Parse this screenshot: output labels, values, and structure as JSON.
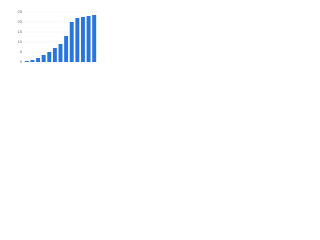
{
  "chart_data": {
    "type": "bar",
    "categories": [
      null,
      null,
      null,
      null,
      null,
      null,
      null,
      null,
      null,
      null,
      null,
      null,
      null
    ],
    "values": [
      0.5,
      1,
      2,
      3.5,
      5,
      7,
      9,
      13,
      20,
      22,
      22.5,
      23,
      23.5
    ],
    "color": "#2876dd",
    "ylim": [
      0,
      25
    ],
    "yticks": [
      0,
      5,
      10,
      15,
      20,
      25
    ],
    "grid": true
  }
}
